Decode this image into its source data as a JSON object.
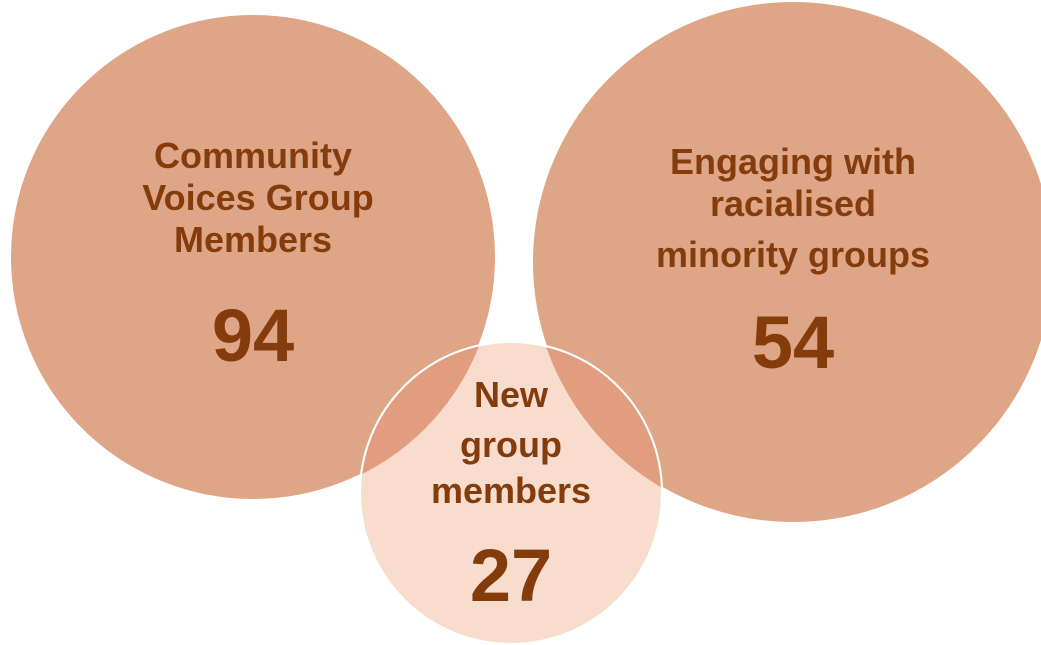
{
  "colors": {
    "big_circle_fill": "#dea586",
    "small_circle_fill": "#f8dccd",
    "overlap_fill": "#e29d7f",
    "circle_stroke": "#ffffff",
    "text": "#843c0c"
  },
  "circles": [
    {
      "id": "community-voices",
      "label_lines": [
        "Community",
        "Voices Group",
        "Members"
      ],
      "value": "94"
    },
    {
      "id": "racialised-minority",
      "label_lines": [
        "Engaging with",
        "racialised",
        "minority groups"
      ],
      "value": "54"
    },
    {
      "id": "new-members",
      "label_lines": [
        "New",
        "group",
        "members"
      ],
      "value": "27"
    }
  ]
}
